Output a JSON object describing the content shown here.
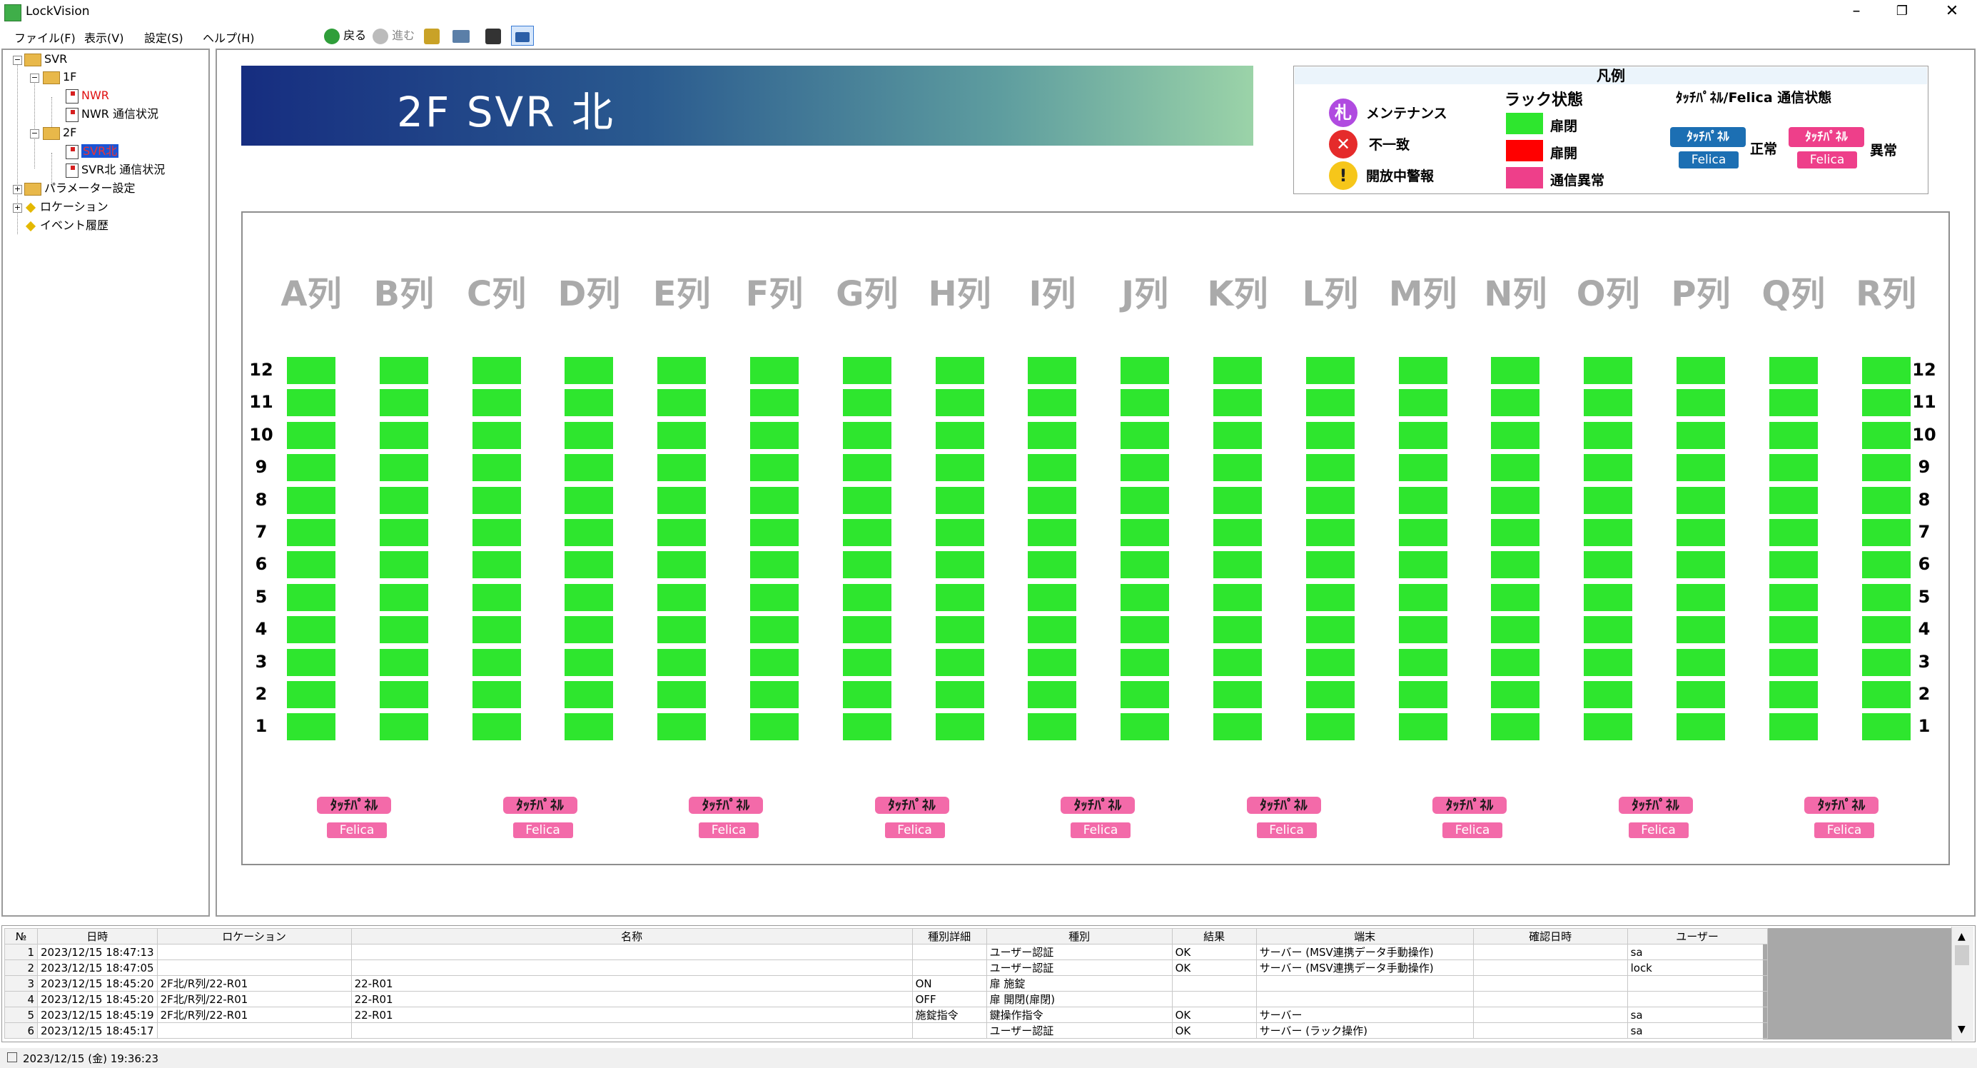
{
  "window": {
    "title": "LockVision"
  },
  "menu": {
    "items": [
      "ファイル(F)",
      "表示(V)",
      "設定(S)",
      "ヘルプ(H)"
    ]
  },
  "toolbar": {
    "back": "戻る",
    "forward": "進む"
  },
  "tree": {
    "root": "SVR",
    "floor1": "1F",
    "nwr": "NWR",
    "nwr_comm": "NWR 通信状況",
    "floor2": "2F",
    "svr_north": "SVR北",
    "svr_north_comm": "SVR北 通信状況",
    "params": "パラメーター設定",
    "location": "ロケーション",
    "events": "イベント履歴"
  },
  "banner": {
    "title": "2F SVR 北"
  },
  "legend": {
    "title": "凡例",
    "maintenance": "メンテナンス",
    "maintenance_glyph": "札",
    "mismatch": "不一致",
    "open_warning": "開放中警報",
    "rack_status_title": "ラック状態",
    "rack_closed": "扉閉",
    "rack_open": "扉開",
    "rack_comm_error": "通信異常",
    "touch_title": "ﾀｯﾁﾊﾟﾈﾙ/Felica 通信状態",
    "touch_panel": "ﾀｯﾁﾊﾟﾈﾙ",
    "felica": "Felica",
    "normal": "正常",
    "abnormal": "異常",
    "colors": {
      "closed": "#2ee62e",
      "open": "#ff0000",
      "comm_error": "#ee3f8a",
      "panel_normal": "#1c6fb3",
      "panel_abnormal": "#ee3f8a"
    }
  },
  "rack_grid": {
    "columns": [
      "A列",
      "B列",
      "C列",
      "D列",
      "E列",
      "F列",
      "G列",
      "H列",
      "I列",
      "J列",
      "K列",
      "L列",
      "M列",
      "N列",
      "O列",
      "P列",
      "Q列",
      "R列"
    ],
    "rows": [
      "12",
      "11",
      "10",
      "9",
      "8",
      "7",
      "6",
      "5",
      "4",
      "3",
      "2",
      "1"
    ],
    "status": "closed",
    "panels": [
      {
        "label": "ﾀｯﾁﾊﾟﾈﾙ",
        "felica": "Felica"
      },
      {
        "label": "ﾀｯﾁﾊﾟﾈﾙ",
        "felica": "Felica"
      },
      {
        "label": "ﾀｯﾁﾊﾟﾈﾙ",
        "felica": "Felica"
      },
      {
        "label": "ﾀｯﾁﾊﾟﾈﾙ",
        "felica": "Felica"
      },
      {
        "label": "ﾀｯﾁﾊﾟﾈﾙ",
        "felica": "Felica"
      },
      {
        "label": "ﾀｯﾁﾊﾟﾈﾙ",
        "felica": "Felica"
      },
      {
        "label": "ﾀｯﾁﾊﾟﾈﾙ",
        "felica": "Felica"
      },
      {
        "label": "ﾀｯﾁﾊﾟﾈﾙ",
        "felica": "Felica"
      },
      {
        "label": "ﾀｯﾁﾊﾟﾈﾙ",
        "felica": "Felica"
      }
    ]
  },
  "log": {
    "headers": [
      "№",
      "日時",
      "ロケーション",
      "名称",
      "種別詳細",
      "種別",
      "結果",
      "端末",
      "確認日時",
      "ユーザー"
    ],
    "rows": [
      [
        "1",
        "2023/12/15 18:47:13",
        "",
        "",
        "",
        "ユーザー認証",
        "OK",
        "サーバー (MSV連携データ手動操作)",
        "",
        "sa"
      ],
      [
        "2",
        "2023/12/15 18:47:05",
        "",
        "",
        "",
        "ユーザー認証",
        "OK",
        "サーバー (MSV連携データ手動操作)",
        "",
        "lock"
      ],
      [
        "3",
        "2023/12/15 18:45:20",
        "2F北/R列/22-R01",
        "22-R01",
        "ON",
        "扉 施錠",
        "",
        "",
        "",
        ""
      ],
      [
        "4",
        "2023/12/15 18:45:20",
        "2F北/R列/22-R01",
        "22-R01",
        "OFF",
        "扉 開閉(扉閉)",
        "",
        "",
        "",
        ""
      ],
      [
        "5",
        "2023/12/15 18:45:19",
        "2F北/R列/22-R01",
        "22-R01",
        "施錠指令",
        "鍵操作指令",
        "OK",
        "サーバー",
        "",
        "sa"
      ],
      [
        "6",
        "2023/12/15 18:45:17",
        "",
        "",
        "",
        "ユーザー認証",
        "OK",
        "サーバー (ラック操作)",
        "",
        "sa"
      ]
    ]
  },
  "status_bar": {
    "datetime": "2023/12/15 (金) 19:36:23"
  }
}
